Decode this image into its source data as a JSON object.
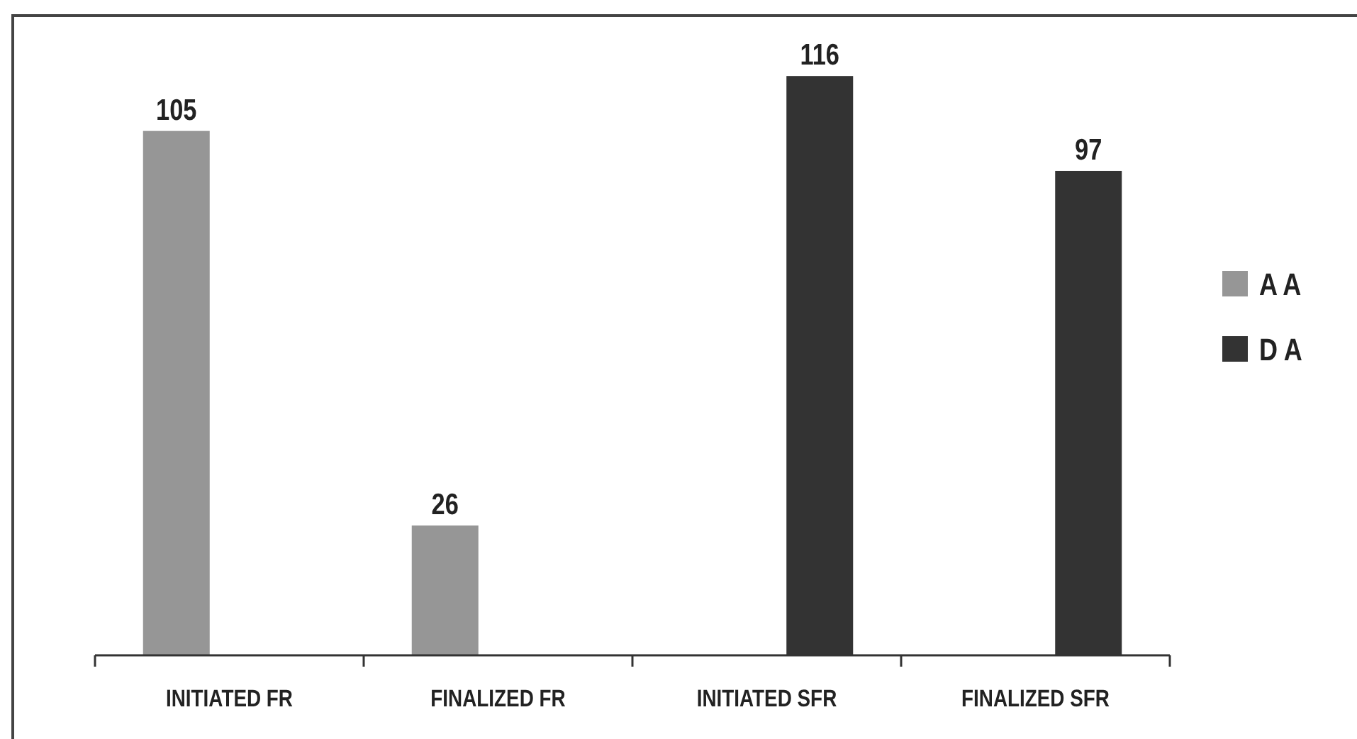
{
  "chart_data": {
    "type": "bar",
    "categories": [
      "INITIATED FR",
      "FINALIZED FR",
      "INITIATED SFR",
      "FINALIZED SFR"
    ],
    "series": [
      {
        "name": "A A",
        "color": "#969696",
        "values": [
          105,
          26,
          null,
          null
        ]
      },
      {
        "name": "D A",
        "color": "#333333",
        "values": [
          null,
          null,
          116,
          97
        ]
      }
    ],
    "data_labels": true,
    "legend": "right",
    "grid": false
  }
}
